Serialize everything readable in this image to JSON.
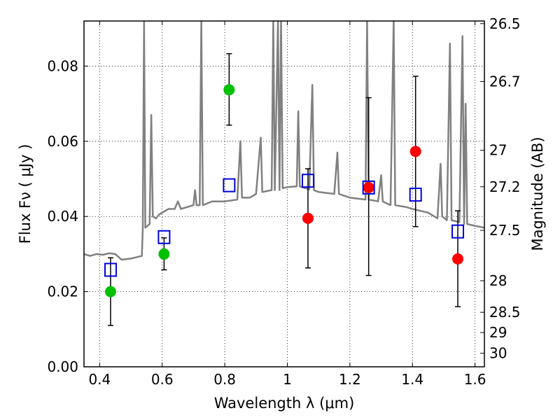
{
  "chart_data": {
    "type": "scatter",
    "xlabel": "Wavelength  λ (μm)",
    "ylabel": "Flux  Fν  ( μJy )",
    "y2label": "Magnitude (AB)",
    "xlim": [
      0.35,
      1.63
    ],
    "ylim": [
      0.0,
      0.092
    ],
    "grid": true,
    "x_ticks": [
      0.4,
      0.6,
      0.8,
      1.0,
      1.2,
      1.4,
      1.6
    ],
    "x_tick_labels": [
      "0.4",
      "0.6",
      "0.8",
      "1",
      "1.2",
      "1.4",
      "1.6"
    ],
    "y_ticks": [
      0.0,
      0.02,
      0.04,
      0.06,
      0.08
    ],
    "y_tick_labels": [
      "0.00",
      "0.02",
      "0.04",
      "0.06",
      "0.08"
    ],
    "y2_ticks": [
      {
        "label": "26.5",
        "flux": 0.0913
      },
      {
        "label": "26.7",
        "flux": 0.0759
      },
      {
        "label": "27",
        "flux": 0.0576
      },
      {
        "label": "27.2",
        "flux": 0.0479
      },
      {
        "label": "27.5",
        "flux": 0.0363
      },
      {
        "label": "28",
        "flux": 0.0229
      },
      {
        "label": "28.5",
        "flux": 0.0145
      },
      {
        "label": "29",
        "flux": 0.0091
      },
      {
        "label": "30",
        "flux": 0.0036
      }
    ],
    "series": [
      {
        "marker": "circle",
        "color": "#00c000",
        "points": [
          {
            "x": 0.435,
            "y": 0.02,
            "err_lo": 0.011,
            "err_hi": 0.029
          },
          {
            "x": 0.606,
            "y": 0.03,
            "err_lo": 0.0258,
            "err_hi": 0.0343
          },
          {
            "x": 0.814,
            "y": 0.0737,
            "err_lo": 0.0643,
            "err_hi": 0.0833
          }
        ]
      },
      {
        "marker": "circle",
        "color": "#ff0000",
        "points": [
          {
            "x": 1.066,
            "y": 0.0395,
            "err_lo": 0.0263,
            "err_hi": 0.0527
          },
          {
            "x": 1.26,
            "y": 0.0477,
            "err_lo": 0.0243,
            "err_hi": 0.0716
          },
          {
            "x": 1.41,
            "y": 0.0573,
            "err_lo": 0.0373,
            "err_hi": 0.0773
          },
          {
            "x": 1.545,
            "y": 0.0287,
            "err_lo": 0.016,
            "err_hi": 0.0415
          }
        ]
      },
      {
        "marker": "open-square",
        "color": "#0000dd",
        "points": [
          {
            "x": 0.435,
            "y": 0.0258
          },
          {
            "x": 0.606,
            "y": 0.0345
          },
          {
            "x": 0.814,
            "y": 0.0483
          },
          {
            "x": 1.066,
            "y": 0.0495
          },
          {
            "x": 1.26,
            "y": 0.0477
          },
          {
            "x": 1.41,
            "y": 0.0458
          },
          {
            "x": 1.545,
            "y": 0.036
          }
        ]
      }
    ],
    "model_spectrum": {
      "color": "#808080",
      "points": [
        [
          0.35,
          0.03
        ],
        [
          0.37,
          0.0295
        ],
        [
          0.39,
          0.03
        ],
        [
          0.41,
          0.0298
        ],
        [
          0.43,
          0.0302
        ],
        [
          0.45,
          0.03
        ],
        [
          0.47,
          0.0285
        ],
        [
          0.5,
          0.0288
        ],
        [
          0.52,
          0.0292
        ],
        [
          0.535,
          0.0295
        ],
        [
          0.538,
          0.037
        ],
        [
          0.542,
          0.092
        ],
        [
          0.546,
          0.037
        ],
        [
          0.56,
          0.038
        ],
        [
          0.565,
          0.067
        ],
        [
          0.57,
          0.04
        ],
        [
          0.58,
          0.0395
        ],
        [
          0.59,
          0.0405
        ],
        [
          0.6,
          0.041
        ],
        [
          0.62,
          0.042
        ],
        [
          0.64,
          0.042
        ],
        [
          0.65,
          0.044
        ],
        [
          0.66,
          0.042
        ],
        [
          0.7,
          0.043
        ],
        [
          0.705,
          0.047
        ],
        [
          0.71,
          0.043
        ],
        [
          0.72,
          0.043
        ],
        [
          0.725,
          0.092
        ],
        [
          0.73,
          0.043
        ],
        [
          0.76,
          0.044
        ],
        [
          0.8,
          0.044
        ],
        [
          0.84,
          0.0445
        ],
        [
          0.85,
          0.06
        ],
        [
          0.855,
          0.045
        ],
        [
          0.88,
          0.045
        ],
        [
          0.9,
          0.046
        ],
        [
          0.915,
          0.061
        ],
        [
          0.92,
          0.0465
        ],
        [
          0.95,
          0.047
        ],
        [
          0.955,
          0.092
        ],
        [
          0.96,
          0.047
        ],
        [
          0.97,
          0.092
        ],
        [
          0.975,
          0.047
        ],
        [
          0.98,
          0.092
        ],
        [
          0.985,
          0.0475
        ],
        [
          1.0,
          0.0478
        ],
        [
          1.03,
          0.048
        ],
        [
          1.035,
          0.068
        ],
        [
          1.04,
          0.048
        ],
        [
          1.07,
          0.0472
        ],
        [
          1.08,
          0.075
        ],
        [
          1.085,
          0.047
        ],
        [
          1.1,
          0.0465
        ],
        [
          1.15,
          0.046
        ],
        [
          1.16,
          0.057
        ],
        [
          1.165,
          0.046
        ],
        [
          1.2,
          0.045
        ],
        [
          1.25,
          0.0445
        ],
        [
          1.255,
          0.092
        ],
        [
          1.26,
          0.0445
        ],
        [
          1.29,
          0.044
        ],
        [
          1.3,
          0.051
        ],
        [
          1.305,
          0.044
        ],
        [
          1.33,
          0.043
        ],
        [
          1.34,
          0.092
        ],
        [
          1.345,
          0.043
        ],
        [
          1.38,
          0.0425
        ],
        [
          1.4,
          0.042
        ],
        [
          1.45,
          0.041
        ],
        [
          1.48,
          0.0395
        ],
        [
          1.49,
          0.054
        ],
        [
          1.495,
          0.04
        ],
        [
          1.51,
          0.039
        ],
        [
          1.52,
          0.086
        ],
        [
          1.525,
          0.039
        ],
        [
          1.55,
          0.0385
        ],
        [
          1.56,
          0.088
        ],
        [
          1.565,
          0.038
        ],
        [
          1.57,
          0.07
        ],
        [
          1.575,
          0.038
        ],
        [
          1.6,
          0.0375
        ],
        [
          1.63,
          0.037
        ]
      ]
    }
  }
}
